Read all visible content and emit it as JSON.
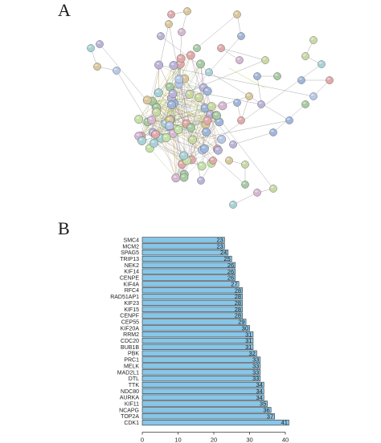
{
  "panels": {
    "a_label": "A",
    "b_label": "B"
  },
  "network": {
    "node_colors": [
      "#c9d8a3",
      "#a7c9a4",
      "#b9b3d8",
      "#d9c79a",
      "#9fb6d9",
      "#e0a9a9",
      "#c5e0a8",
      "#a8d1d6",
      "#d6b6d1",
      "#b7c7e8"
    ]
  },
  "chart_data": {
    "type": "bar",
    "orientation": "horizontal",
    "categories": [
      "SMC4",
      "MCM2",
      "SPAG5",
      "TRIP13",
      "NEK2",
      "KIF14",
      "CENPE",
      "KIF4A",
      "RFC4",
      "RAD51AP1",
      "KIF23",
      "KIF15",
      "CENPF",
      "CEP55",
      "KIF20A",
      "RRM2",
      "CDC20",
      "BUB1B",
      "PBK",
      "PRC1",
      "MELK",
      "MAD2L1",
      "DTL",
      "TTK",
      "NDC80",
      "AURKA",
      "KIF11",
      "NCAPG",
      "TOP2A",
      "CDK1"
    ],
    "values": [
      23,
      23,
      24,
      25,
      26,
      26,
      26,
      27,
      28,
      28,
      28,
      28,
      28,
      29,
      30,
      31,
      31,
      31,
      32,
      33,
      33,
      33,
      33,
      34,
      34,
      34,
      35,
      36,
      37,
      41
    ],
    "xlim": [
      0,
      40
    ],
    "xticks": [
      0,
      10,
      20,
      30,
      40
    ],
    "bar_color": "#87c6e8",
    "bar_edge": "#333333"
  }
}
